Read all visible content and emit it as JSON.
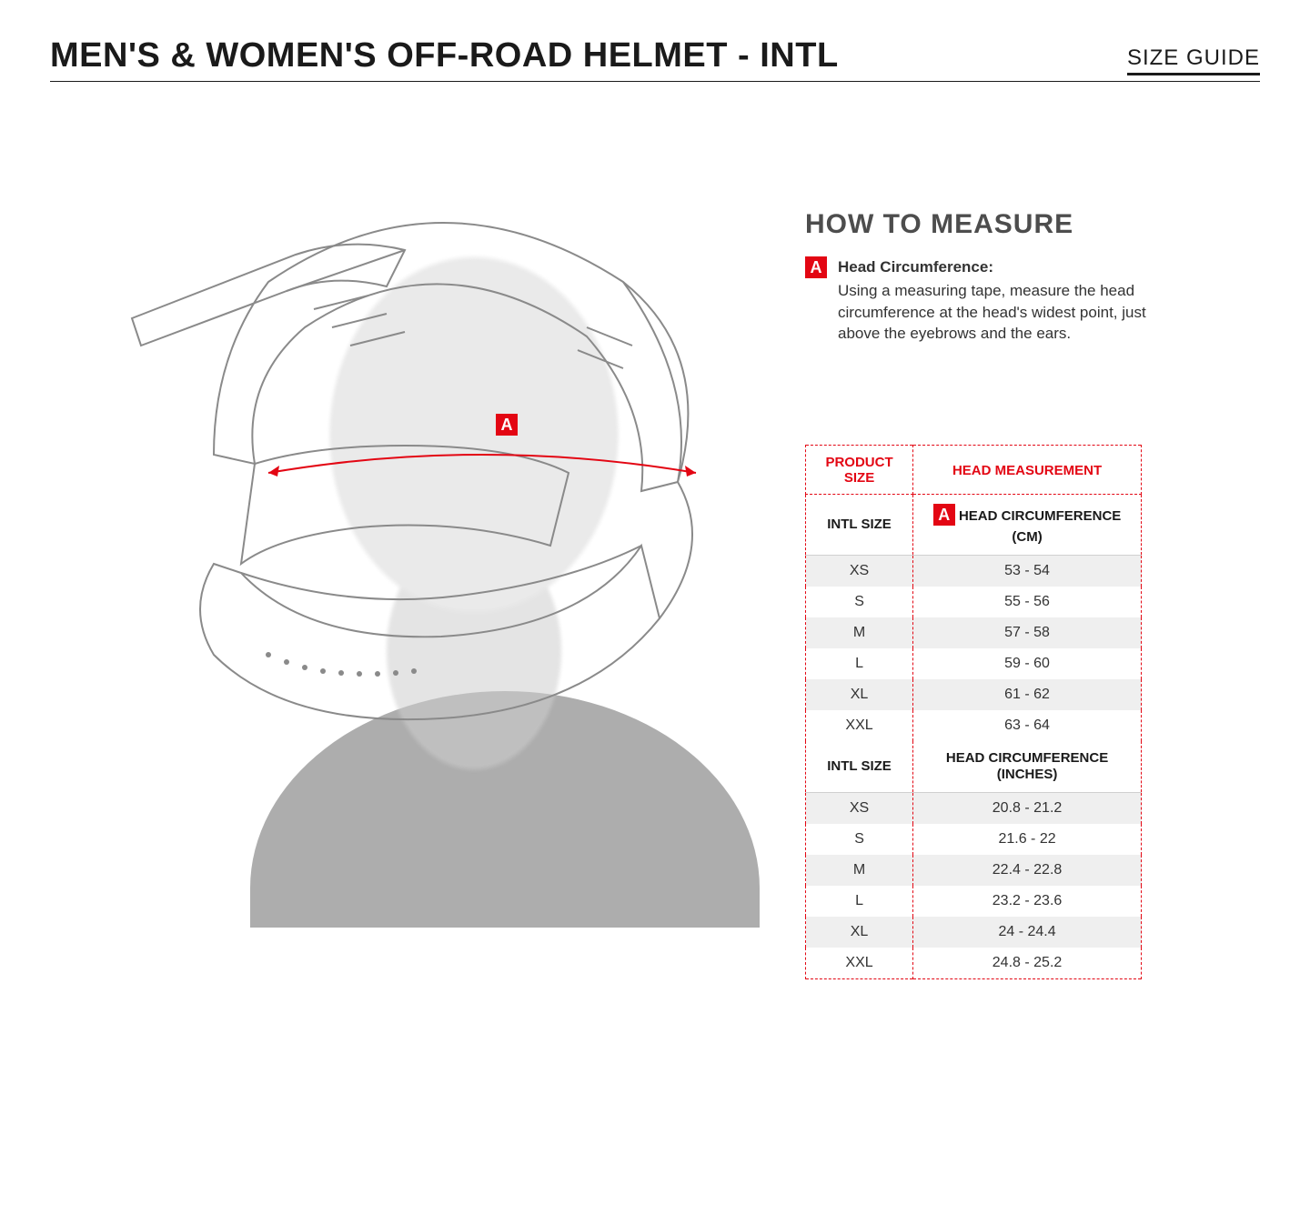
{
  "header": {
    "title": "MEN'S & WOMEN'S OFF-ROAD HELMET - INTL",
    "size_guide": "SIZE GUIDE"
  },
  "colors": {
    "accent": "#e30613",
    "text": "#1a1a1a",
    "measure_line": "#e30613",
    "helmet_line": "#8a8a8a",
    "row_alt_bg": "#efefef"
  },
  "diagram": {
    "marker_label": "A"
  },
  "howto": {
    "title": "HOW TO MEASURE",
    "marker": "A",
    "label": "Head Circumference:",
    "text": "Using a measuring tape, measure the head circumference at the head's widest point, just above the eyebrows and the ears."
  },
  "table": {
    "top_headers": {
      "size": "PRODUCT SIZE",
      "measurement": "HEAD MEASUREMENT"
    },
    "section1": {
      "size_header": "INTL SIZE",
      "meas_marker": "A",
      "meas_header": "HEAD CIRCUMFERENCE (CM)",
      "rows": [
        {
          "size": "XS",
          "value": "53 - 54"
        },
        {
          "size": "S",
          "value": "55 - 56"
        },
        {
          "size": "M",
          "value": "57 - 58"
        },
        {
          "size": "L",
          "value": "59 - 60"
        },
        {
          "size": "XL",
          "value": "61 - 62"
        },
        {
          "size": "XXL",
          "value": "63 - 64"
        }
      ]
    },
    "section2": {
      "size_header": "INTL SIZE",
      "meas_header": "HEAD CIRCUMFERENCE (INCHES)",
      "rows": [
        {
          "size": "XS",
          "value": "20.8 - 21.2"
        },
        {
          "size": "S",
          "value": "21.6 - 22"
        },
        {
          "size": "M",
          "value": "22.4 - 22.8"
        },
        {
          "size": "L",
          "value": "23.2 - 23.6"
        },
        {
          "size": "XL",
          "value": "24 - 24.4"
        },
        {
          "size": "XXL",
          "value": "24.8 - 25.2"
        }
      ]
    }
  }
}
